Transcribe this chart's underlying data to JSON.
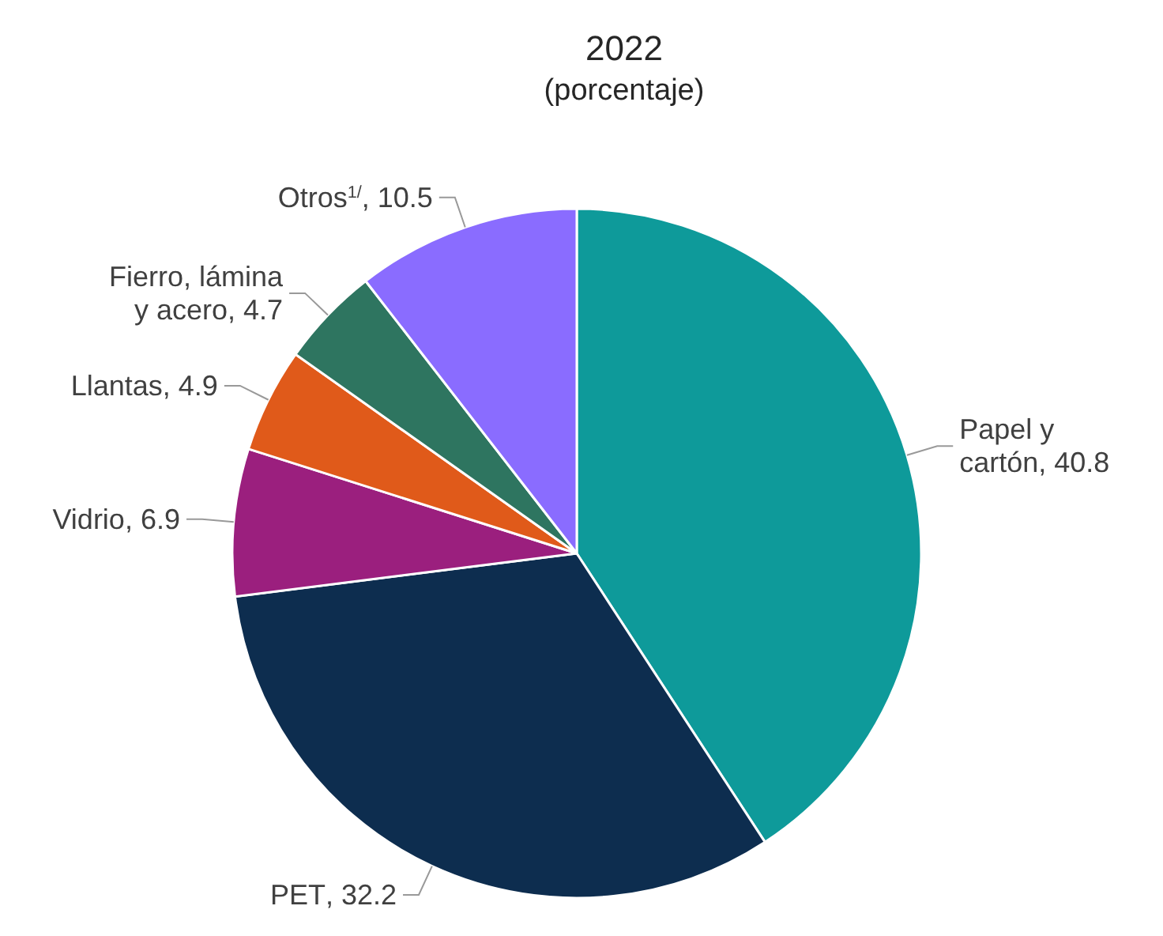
{
  "chart_data": {
    "type": "pie",
    "title": "2022",
    "subtitle": "(porcentaje)",
    "categories": [
      "Papel y cartón",
      "PET",
      "Vidrio",
      "Llantas",
      "Fierro, lámina y acero",
      "Otros$^{1/}$"
    ],
    "values": [
      40.8,
      32.2,
      6.9,
      4.9,
      4.7,
      10.5
    ],
    "value_labels": [
      ", 40.8",
      ", 32.2",
      ", 6.9",
      ", 4.9",
      ", 4.7",
      ", 10.5"
    ],
    "colors": [
      "#0e9a9a",
      "#0d2d4f",
      "#9b1f7e",
      "#e05a1a",
      "#2e7560",
      "#8a6cff"
    ]
  }
}
